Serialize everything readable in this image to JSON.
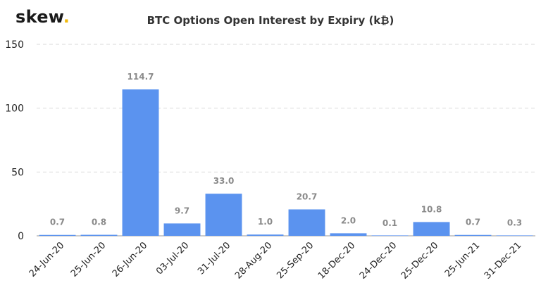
{
  "logo": {
    "text": "skew",
    "dot": "."
  },
  "chart_data": {
    "type": "bar",
    "title": "BTC Options Open Interest by Expiry (k₿)",
    "categories": [
      "24-Jun-20",
      "25-Jun-20",
      "26-Jun-20",
      "03-Jul-20",
      "31-Jul-20",
      "28-Aug-20",
      "25-Sep-20",
      "18-Dec-20",
      "24-Dec-20",
      "25-Dec-20",
      "25-Jun-21",
      "31-Dec-21"
    ],
    "values": [
      0.7,
      0.8,
      114.7,
      9.7,
      33.0,
      1.0,
      20.7,
      2.0,
      0.1,
      10.8,
      0.7,
      0.3
    ],
    "data_labels": [
      "0.7",
      "0.8",
      "114.7",
      "9.7",
      "33.0",
      "1.0",
      "20.7",
      "2.0",
      "0.1",
      "10.8",
      "0.7",
      "0.3"
    ],
    "ylim": [
      0,
      150
    ],
    "yticks": [
      0,
      50,
      100,
      150
    ],
    "xlabel": "",
    "ylabel": "",
    "grid": true,
    "bar_color": "#5b93ef",
    "grid_color": "#d9d9d9"
  }
}
